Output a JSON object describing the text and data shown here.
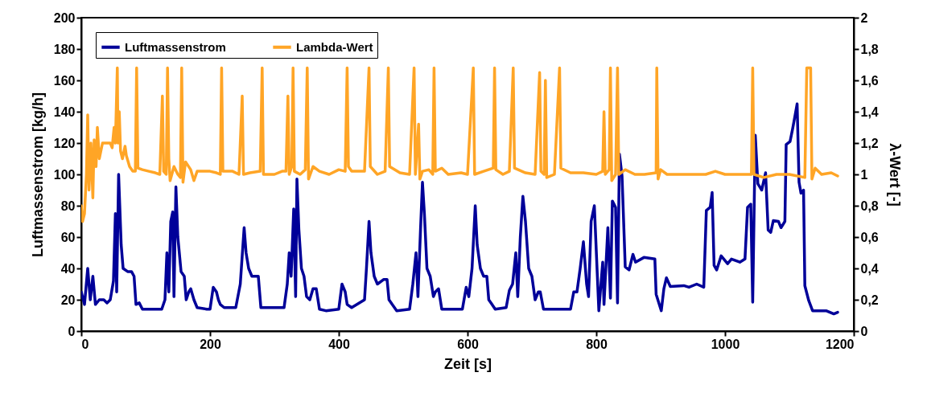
{
  "chart_data": {
    "type": "line",
    "xlabel": "Zeit [s]",
    "ylabel": "Luftmassenstrom [kg/h]",
    "y2label": "λ-Wert [-]",
    "xlim": [
      0,
      1200
    ],
    "xticks": [
      0,
      200,
      400,
      600,
      800,
      1000,
      1200
    ],
    "ylim": [
      0,
      200
    ],
    "yticks": [
      0,
      20,
      40,
      60,
      80,
      100,
      120,
      140,
      160,
      180,
      200
    ],
    "y2lim": [
      0,
      2
    ],
    "y2ticks": [
      0,
      {
        "value": 0.2,
        "label": "0,2"
      },
      {
        "value": 0.4,
        "label": "0,4"
      },
      {
        "value": 0.6,
        "label": "0,6"
      },
      {
        "value": 0.8,
        "label": "0,8"
      },
      1,
      {
        "value": 1.2,
        "label": "1,2"
      },
      {
        "value": 1.4,
        "label": "1,4"
      },
      {
        "value": 1.6,
        "label": "1,6"
      },
      {
        "value": 1.8,
        "label": "1,8"
      },
      2
    ],
    "legend": "top left",
    "series": [
      {
        "name": "Luftmassenstrom",
        "color": "#000099",
        "x": [
          0,
          5,
          10,
          14,
          18,
          22,
          28,
          35,
          40,
          45,
          50,
          53,
          55,
          58,
          62,
          65,
          72,
          78,
          82,
          85,
          90,
          95,
          110,
          125,
          130,
          133,
          136,
          139,
          142,
          144,
          147,
          150,
          155,
          160,
          163,
          167,
          170,
          175,
          180,
          195,
          200,
          205,
          210,
          213,
          216,
          222,
          240,
          247,
          250,
          253,
          256,
          260,
          265,
          275,
          279,
          290,
          315,
          320,
          323,
          326,
          330,
          333,
          335,
          338,
          342,
          346,
          350,
          355,
          360,
          365,
          370,
          380,
          400,
          405,
          410,
          413,
          420,
          440,
          443,
          447,
          450,
          455,
          460,
          470,
          475,
          478,
          483,
          490,
          510,
          515,
          520,
          523,
          527,
          530,
          533,
          537,
          542,
          547,
          550,
          555,
          560,
          592,
          598,
          602,
          607,
          612,
          615,
          620,
          625,
          630,
          633,
          638,
          643,
          660,
          665,
          670,
          675,
          678,
          682,
          686,
          690,
          695,
          700,
          705,
          710,
          713,
          718,
          760,
          765,
          770,
          775,
          780,
          785,
          788,
          792,
          797,
          804,
          810,
          812,
          818,
          822,
          825,
          830,
          833,
          836,
          840,
          845,
          851,
          857,
          861,
          874,
          891,
          893,
          901,
          905,
          909,
          915,
          936,
          944,
          956,
          967,
          971,
          977,
          980,
          983,
          987,
          994,
          1004,
          1010,
          1023,
          1031,
          1035,
          1040,
          1043,
          1047,
          1051,
          1057,
          1063,
          1067,
          1071,
          1075,
          1083,
          1087,
          1093,
          1095,
          1101,
          1105,
          1109,
          1112,
          1115,
          1118,
          1122,
          1124,
          1130,
          1136,
          1157,
          1169,
          1175
        ],
        "values": [
          25,
          17,
          40,
          20,
          35,
          17,
          20,
          20,
          18,
          20,
          32,
          75,
          25,
          100,
          55,
          40,
          38,
          38,
          35,
          17,
          18,
          14,
          14,
          14,
          20,
          50,
          25,
          70,
          76,
          22,
          92,
          60,
          38,
          35,
          20,
          25,
          27,
          20,
          15,
          14,
          14,
          28,
          25,
          20,
          17,
          15,
          15,
          30,
          48,
          66,
          50,
          40,
          35,
          35,
          15,
          15,
          15,
          30,
          50,
          35,
          78,
          22,
          97,
          65,
          40,
          35,
          22,
          20,
          27,
          27,
          14,
          13,
          14,
          30,
          25,
          17,
          15,
          20,
          40,
          70,
          50,
          35,
          30,
          33,
          33,
          20,
          17,
          13,
          14,
          30,
          50,
          22,
          65,
          95,
          75,
          40,
          35,
          22,
          25,
          27,
          14,
          14,
          28,
          22,
          40,
          80,
          55,
          40,
          35,
          35,
          20,
          17,
          14,
          15,
          26,
          30,
          50,
          22,
          60,
          86,
          70,
          40,
          35,
          20,
          25,
          25,
          14,
          14,
          25,
          25,
          40,
          57,
          30,
          22,
          70,
          80,
          13,
          44,
          17,
          66,
          21,
          83,
          79,
          18,
          113,
          99,
          41,
          39,
          49,
          44,
          47,
          46,
          23.5,
          13,
          27,
          34,
          28.5,
          29,
          28,
          30,
          28,
          77,
          79,
          88.5,
          42,
          39,
          48,
          43,
          46,
          44,
          46,
          79,
          81,
          18.5,
          125,
          94,
          90,
          101,
          64.5,
          63,
          70.5,
          70,
          66,
          70,
          119,
          121,
          129,
          138,
          145,
          95,
          88,
          90,
          29,
          19.5,
          13,
          13,
          11,
          12
        ]
      },
      {
        "name": "Lambda-Wert",
        "color": "#ffa526",
        "axis": "y2",
        "x": [
          0,
          2,
          5,
          8,
          10,
          12,
          15,
          18,
          20,
          23,
          25,
          28,
          33,
          40,
          45,
          48,
          51,
          53,
          56,
          57,
          59,
          61,
          64,
          68,
          70,
          75,
          80,
          84,
          86,
          88,
          95,
          105,
          115,
          122,
          126,
          128,
          132,
          134,
          136,
          138,
          144,
          150,
          154,
          156,
          158,
          162,
          170,
          175,
          180,
          200,
          210,
          216,
          218,
          220,
          235,
          245,
          250,
          252,
          262,
          278,
          281,
          283,
          300,
          312,
          318,
          321,
          323,
          327,
          329,
          331,
          340,
          348,
          351,
          353,
          360,
          370,
          385,
          400,
          410,
          413,
          415,
          420,
          440,
          447,
          449,
          460,
          472,
          477,
          479,
          495,
          510,
          517,
          519,
          524,
          526,
          530,
          540,
          546,
          548,
          550,
          560,
          570,
          590,
          600,
          609,
          611,
          625,
          640,
          642,
          644,
          655,
          665,
          671,
          673,
          690,
          705,
          712,
          714,
          719,
          721,
          723,
          735,
          743,
          745,
          760,
          780,
          800,
          810,
          812,
          814,
          820,
          822,
          824,
          830,
          833,
          835,
          845,
          860,
          875,
          893,
          894,
          896,
          900,
          910,
          950,
          970,
          985,
          1000,
          1020,
          1041,
          1043,
          1045,
          1060,
          1080,
          1100,
          1124,
          1127,
          1133,
          1135,
          1140,
          1150,
          1165,
          1175
        ],
        "values": [
          0.8,
          0.7,
          0.75,
          1.0,
          1.38,
          0.9,
          1.2,
          0.85,
          1.22,
          1.05,
          1.3,
          1.1,
          1.2,
          1.2,
          1.2,
          1.17,
          1.3,
          1.2,
          1.68,
          1.2,
          1.4,
          1.15,
          1.1,
          1.18,
          1.12,
          1.05,
          1.02,
          1.02,
          1.68,
          1.04,
          1.03,
          1.02,
          1.01,
          1.0,
          1.5,
          1.02,
          1.0,
          1.68,
          1.1,
          0.96,
          1.05,
          1.0,
          0.98,
          1.68,
          0.95,
          1.08,
          1.03,
          0.96,
          1.02,
          1.02,
          1.01,
          1.0,
          1.68,
          1.02,
          1.02,
          1.0,
          1.5,
          1.0,
          1.01,
          1.02,
          1.68,
          1.0,
          1.0,
          1.02,
          1.02,
          1.5,
          1.0,
          1.05,
          1.68,
          1.02,
          1.0,
          1.03,
          1.68,
          0.97,
          1.05,
          1.02,
          1.0,
          1.03,
          1.02,
          1.68,
          1.05,
          1.02,
          1.02,
          1.68,
          1.05,
          1.0,
          1.02,
          1.68,
          1.05,
          1.01,
          1.0,
          1.68,
          1.0,
          1.32,
          0.97,
          1.02,
          1.03,
          1.0,
          1.68,
          1.02,
          1.04,
          1.0,
          1.01,
          1.0,
          1.68,
          1.0,
          1.02,
          1.04,
          1.68,
          1.03,
          1.0,
          1.02,
          1.68,
          1.04,
          1.01,
          1.0,
          1.65,
          1.02,
          1.0,
          1.6,
          0.98,
          1.0,
          1.68,
          1.04,
          1.01,
          1.01,
          1.0,
          1.02,
          1.4,
          1.0,
          1.03,
          1.68,
          0.96,
          1.0,
          1.68,
          1.0,
          1.03,
          1.0,
          1.0,
          1.01,
          1.68,
          0.97,
          1.03,
          1.0,
          1.0,
          1.0,
          1.02,
          1.0,
          1.0,
          1.0,
          1.68,
          1.0,
          0.98,
          1.0,
          1.0,
          0.98,
          1.68,
          1.68,
          0.97,
          1.04,
          1.0,
          1.01,
          0.99
        ]
      }
    ]
  }
}
